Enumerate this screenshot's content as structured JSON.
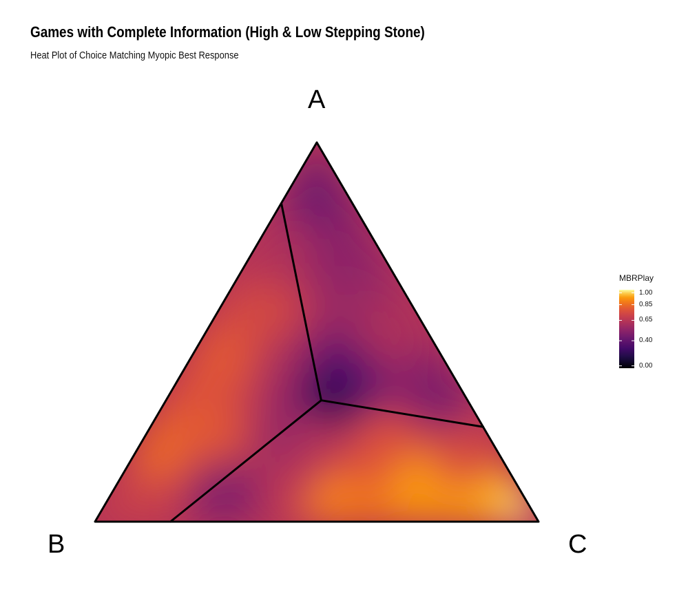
{
  "header": {
    "title": "Games with Complete Information (High & Low Stepping Stone)",
    "subtitle": "Heat Plot of Choice Matching Myopic Best Response"
  },
  "chart_data": {
    "type": "heatmap",
    "subtype": "ternary",
    "title": "Games with Complete Information (High & Low Stepping Stone)",
    "subtitle": "Heat Plot of Choice Matching Myopic Best Response",
    "vertices": [
      "A",
      "B",
      "C"
    ],
    "legend": {
      "title": "MBRPlay",
      "ticks": [
        {
          "value": 1.0,
          "label": "1.00"
        },
        {
          "value": 0.85,
          "label": "0.85"
        },
        {
          "value": 0.65,
          "label": "0.65"
        },
        {
          "value": 0.4,
          "label": "0.40"
        },
        {
          "value": 0.0,
          "label": "0.00"
        }
      ],
      "range": [
        0,
        1
      ],
      "colorscale": "inferno",
      "placement": "right"
    },
    "region_boundaries": {
      "center": {
        "A": 0.32,
        "B": 0.33,
        "C": 0.35
      },
      "edge_points": [
        {
          "A": 0.84,
          "B": 0.16,
          "C": 0.0
        },
        {
          "A": 0.0,
          "B": 0.83,
          "C": 0.17
        },
        {
          "A": 0.25,
          "B": 0.0,
          "C": 0.75
        }
      ]
    },
    "samples": [
      {
        "A": 0.86,
        "B": 0.07,
        "C": 0.07,
        "value": 0.4
      },
      {
        "A": 0.7,
        "B": 0.1,
        "C": 0.2,
        "value": 0.48
      },
      {
        "A": 0.5,
        "B": 0.1,
        "C": 0.4,
        "value": 0.58
      },
      {
        "A": 0.55,
        "B": 0.15,
        "C": 0.3,
        "value": 0.52
      },
      {
        "A": 0.4,
        "B": 0.25,
        "C": 0.35,
        "value": 0.3
      },
      {
        "A": 0.33,
        "B": 0.31,
        "C": 0.36,
        "value": 0.12
      },
      {
        "A": 0.33,
        "B": 0.05,
        "C": 0.62,
        "value": 0.42
      },
      {
        "A": 0.72,
        "B": 0.22,
        "C": 0.06,
        "value": 0.58
      },
      {
        "A": 0.55,
        "B": 0.33,
        "C": 0.12,
        "value": 0.7
      },
      {
        "A": 0.43,
        "B": 0.48,
        "C": 0.09,
        "value": 0.76
      },
      {
        "A": 0.4,
        "B": 0.38,
        "C": 0.22,
        "value": 0.55
      },
      {
        "A": 0.23,
        "B": 0.62,
        "C": 0.15,
        "value": 0.76
      },
      {
        "A": 0.18,
        "B": 0.77,
        "C": 0.05,
        "value": 0.8
      },
      {
        "A": 0.08,
        "B": 0.67,
        "C": 0.25,
        "value": 0.44
      },
      {
        "A": 0.07,
        "B": 0.87,
        "C": 0.06,
        "value": 0.66
      },
      {
        "A": 0.22,
        "B": 0.45,
        "C": 0.33,
        "value": 0.5
      },
      {
        "A": 0.23,
        "B": 0.4,
        "C": 0.37,
        "value": 0.6
      },
      {
        "A": 0.1,
        "B": 0.5,
        "C": 0.4,
        "value": 0.62
      },
      {
        "A": 0.06,
        "B": 0.44,
        "C": 0.5,
        "value": 0.86
      },
      {
        "A": 0.2,
        "B": 0.26,
        "C": 0.54,
        "value": 0.74
      },
      {
        "A": 0.1,
        "B": 0.22,
        "C": 0.68,
        "value": 0.9
      },
      {
        "A": 0.04,
        "B": 0.1,
        "C": 0.86,
        "value": 0.92
      },
      {
        "A": 0.03,
        "B": 0.02,
        "C": 0.95,
        "value": 0.98
      },
      {
        "A": 0.18,
        "B": 0.08,
        "C": 0.74,
        "value": 0.7
      }
    ]
  }
}
